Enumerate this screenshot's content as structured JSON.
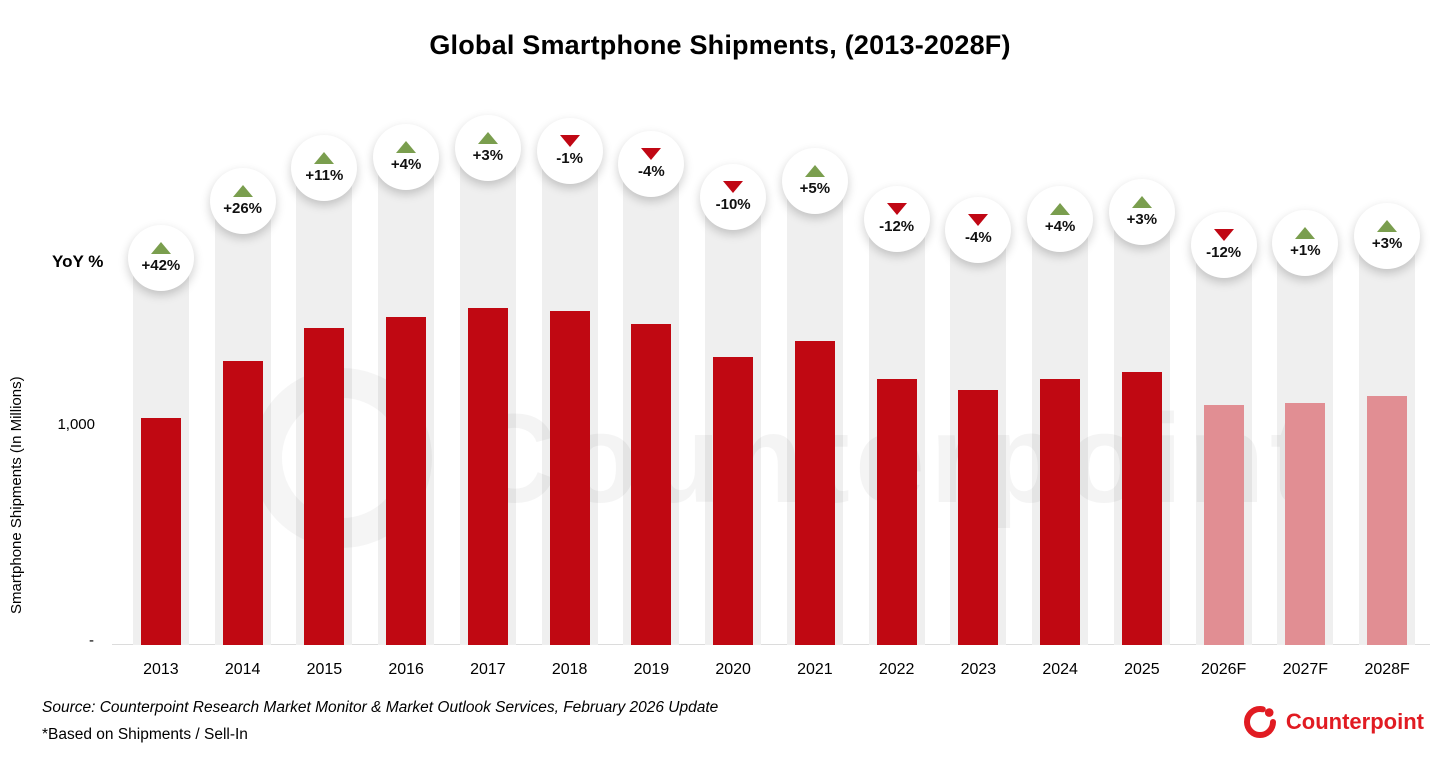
{
  "title": "Global Smartphone Shipments, (2013-2028F)",
  "yoy_label": "YoY %",
  "y_axis": {
    "label": "Smartphone Shipments (In Millions)",
    "tick_thousand": "1,000",
    "tick_zero": "-"
  },
  "watermark": {
    "text": "Counterpoint"
  },
  "footer": {
    "source": "Source: Counterpoint Research Market Monitor & Market Outlook Services, February 2026 Update",
    "note": "*Based on Shipments / Sell-In"
  },
  "logo": {
    "text": "Counterpoint"
  },
  "colors": {
    "bar_actual": "#c00812",
    "bar_forecast": "#e18e93",
    "track": "#efefef",
    "yoy_up": "#7a9e4e",
    "yoy_down": "#c00714",
    "brand_red": "#e11b22"
  },
  "chart_data": {
    "type": "bar",
    "title": "Global Smartphone Shipments, (2013-2028F)",
    "xlabel": "",
    "ylabel": "Smartphone Shipments (In Millions)",
    "ylim": [
      0,
      1600
    ],
    "grid": false,
    "legend": false,
    "categories": [
      "2013",
      "2014",
      "2015",
      "2016",
      "2017",
      "2018",
      "2019",
      "2020",
      "2021",
      "2022",
      "2023",
      "2024",
      "2025",
      "2026F",
      "2027F",
      "2028F"
    ],
    "values": [
      1030,
      1290,
      1440,
      1490,
      1530,
      1520,
      1460,
      1310,
      1380,
      1210,
      1160,
      1210,
      1240,
      1090,
      1100,
      1130
    ],
    "yoy_labels": [
      "+42%",
      "+26%",
      "+11%",
      "+4%",
      "+3%",
      "-1%",
      "-4%",
      "-10%",
      "+5%",
      "-12%",
      "-4%",
      "+4%",
      "+3%",
      "-12%",
      "+1%",
      "+3%"
    ],
    "yoy_percent": [
      42,
      26,
      11,
      4,
      3,
      -1,
      -4,
      -10,
      5,
      -12,
      -4,
      4,
      3,
      -12,
      1,
      3
    ],
    "forecast": [
      false,
      false,
      false,
      false,
      false,
      false,
      false,
      false,
      false,
      false,
      false,
      false,
      false,
      true,
      true,
      true
    ]
  }
}
